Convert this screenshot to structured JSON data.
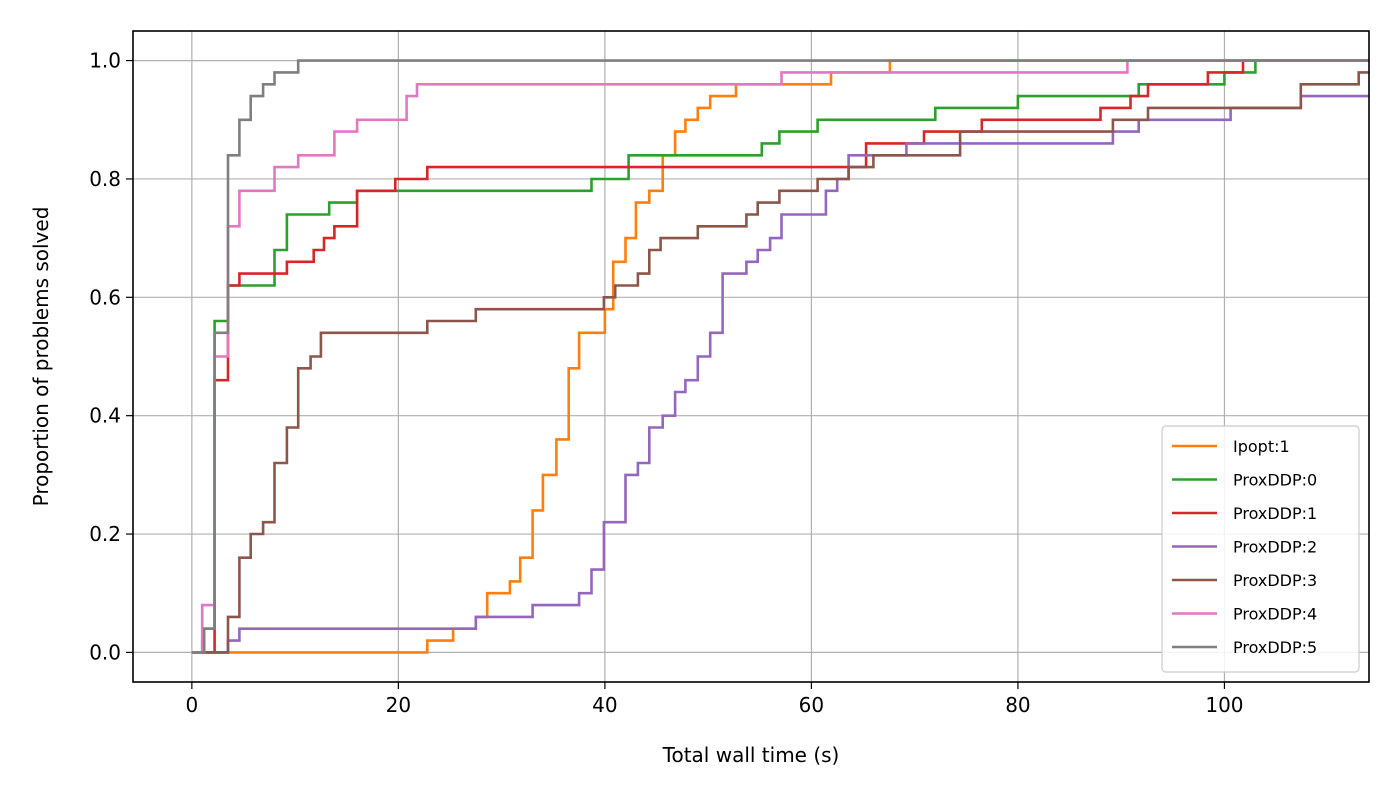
{
  "chart_data": {
    "type": "line",
    "step": "post",
    "xlabel": "Total wall time (s)",
    "ylabel": "Proportion of problems solved",
    "xlim": [
      -5.7,
      114
    ],
    "ylim": [
      -0.05,
      1.05
    ],
    "xticks": [
      0,
      20,
      40,
      60,
      80,
      100
    ],
    "yticks": [
      0.0,
      0.2,
      0.4,
      0.6,
      0.8,
      1.0
    ],
    "grid": true,
    "legend_position": "lower-right",
    "series": [
      {
        "name": "Ipopt:1",
        "color": "#ff7f0e",
        "points": [
          [
            0,
            0
          ],
          [
            22.8,
            0.02
          ],
          [
            25.3,
            0.04
          ],
          [
            27.5,
            0.06
          ],
          [
            28.6,
            0.1
          ],
          [
            30.8,
            0.12
          ],
          [
            31.8,
            0.16
          ],
          [
            33.0,
            0.24
          ],
          [
            34.0,
            0.3
          ],
          [
            35.3,
            0.36
          ],
          [
            36.5,
            0.48
          ],
          [
            37.5,
            0.54
          ],
          [
            40.0,
            0.58
          ],
          [
            40.8,
            0.66
          ],
          [
            42.0,
            0.7
          ],
          [
            43.0,
            0.76
          ],
          [
            44.3,
            0.78
          ],
          [
            45.6,
            0.84
          ],
          [
            46.8,
            0.88
          ],
          [
            47.8,
            0.9
          ],
          [
            49.0,
            0.92
          ],
          [
            50.2,
            0.94
          ],
          [
            52.7,
            0.96
          ],
          [
            61.9,
            0.98
          ],
          [
            67.6,
            1.0
          ],
          [
            114,
            1.0
          ]
        ]
      },
      {
        "name": "ProxDDP:0",
        "color": "#2ca02c",
        "points": [
          [
            0,
            0
          ],
          [
            1.0,
            0.02
          ],
          [
            1.2,
            0.04
          ],
          [
            2.2,
            0.56
          ],
          [
            3.5,
            0.62
          ],
          [
            8.0,
            0.68
          ],
          [
            9.2,
            0.74
          ],
          [
            13.3,
            0.76
          ],
          [
            16.0,
            0.78
          ],
          [
            38.7,
            0.8
          ],
          [
            42.3,
            0.84
          ],
          [
            55.2,
            0.86
          ],
          [
            56.9,
            0.88
          ],
          [
            60.6,
            0.9
          ],
          [
            72.0,
            0.92
          ],
          [
            80.0,
            0.94
          ],
          [
            91.7,
            0.96
          ],
          [
            100.0,
            0.98
          ],
          [
            103.0,
            1.0
          ],
          [
            114,
            1.0
          ]
        ]
      },
      {
        "name": "ProxDDP:1",
        "color": "#d62728",
        "points": [
          [
            0,
            0
          ],
          [
            2.2,
            0.46
          ],
          [
            3.5,
            0.62
          ],
          [
            4.6,
            0.64
          ],
          [
            9.2,
            0.66
          ],
          [
            11.8,
            0.68
          ],
          [
            12.8,
            0.7
          ],
          [
            13.8,
            0.72
          ],
          [
            16.0,
            0.78
          ],
          [
            19.7,
            0.8
          ],
          [
            22.8,
            0.82
          ],
          [
            45.6,
            0.82
          ],
          [
            65.3,
            0.86
          ],
          [
            70.9,
            0.88
          ],
          [
            76.5,
            0.9
          ],
          [
            88.0,
            0.92
          ],
          [
            90.9,
            0.94
          ],
          [
            92.6,
            0.96
          ],
          [
            98.4,
            0.98
          ],
          [
            101.8,
            1.0
          ],
          [
            114,
            1.0
          ]
        ]
      },
      {
        "name": "ProxDDP:2",
        "color": "#9467bd",
        "points": [
          [
            0,
            0
          ],
          [
            3.5,
            0.02
          ],
          [
            4.6,
            0.04
          ],
          [
            27.5,
            0.06
          ],
          [
            33.0,
            0.08
          ],
          [
            37.5,
            0.1
          ],
          [
            38.7,
            0.14
          ],
          [
            39.9,
            0.22
          ],
          [
            42.0,
            0.3
          ],
          [
            43.2,
            0.32
          ],
          [
            44.3,
            0.38
          ],
          [
            45.6,
            0.4
          ],
          [
            46.8,
            0.44
          ],
          [
            47.8,
            0.46
          ],
          [
            49.0,
            0.5
          ],
          [
            50.2,
            0.54
          ],
          [
            51.4,
            0.64
          ],
          [
            53.7,
            0.66
          ],
          [
            54.8,
            0.68
          ],
          [
            56.0,
            0.7
          ],
          [
            57.1,
            0.74
          ],
          [
            61.4,
            0.78
          ],
          [
            62.5,
            0.8
          ],
          [
            63.6,
            0.84
          ],
          [
            69.2,
            0.86
          ],
          [
            76.5,
            0.86
          ],
          [
            89.2,
            0.88
          ],
          [
            91.7,
            0.9
          ],
          [
            100.6,
            0.92
          ],
          [
            107.4,
            0.94
          ],
          [
            114,
            0.94
          ]
        ]
      },
      {
        "name": "ProxDDP:3",
        "color": "#8c564b",
        "points": [
          [
            0,
            0
          ],
          [
            3.5,
            0.06
          ],
          [
            4.6,
            0.16
          ],
          [
            5.7,
            0.2
          ],
          [
            6.9,
            0.22
          ],
          [
            8.0,
            0.32
          ],
          [
            9.2,
            0.38
          ],
          [
            10.3,
            0.48
          ],
          [
            11.5,
            0.5
          ],
          [
            12.5,
            0.54
          ],
          [
            22.8,
            0.56
          ],
          [
            27.5,
            0.58
          ],
          [
            39.9,
            0.6
          ],
          [
            41.0,
            0.62
          ],
          [
            43.2,
            0.64
          ],
          [
            44.3,
            0.68
          ],
          [
            45.4,
            0.7
          ],
          [
            49.0,
            0.72
          ],
          [
            53.7,
            0.74
          ],
          [
            54.8,
            0.76
          ],
          [
            56.9,
            0.78
          ],
          [
            60.6,
            0.8
          ],
          [
            63.6,
            0.82
          ],
          [
            66.0,
            0.84
          ],
          [
            74.4,
            0.88
          ],
          [
            89.2,
            0.9
          ],
          [
            92.6,
            0.92
          ],
          [
            107.4,
            0.96
          ],
          [
            113.0,
            0.98
          ],
          [
            114,
            0.98
          ]
        ]
      },
      {
        "name": "ProxDDP:4",
        "color": "#e377c2",
        "points": [
          [
            0,
            0
          ],
          [
            1.0,
            0.08
          ],
          [
            2.2,
            0.5
          ],
          [
            3.5,
            0.72
          ],
          [
            4.6,
            0.78
          ],
          [
            8.0,
            0.82
          ],
          [
            10.3,
            0.84
          ],
          [
            13.8,
            0.88
          ],
          [
            16.0,
            0.9
          ],
          [
            20.8,
            0.94
          ],
          [
            21.8,
            0.96
          ],
          [
            57.1,
            0.98
          ],
          [
            90.6,
            1.0
          ],
          [
            114,
            1.0
          ]
        ]
      },
      {
        "name": "ProxDDP:5",
        "color": "#7f7f7f",
        "points": [
          [
            0,
            0
          ],
          [
            1.2,
            0.04
          ],
          [
            2.2,
            0.54
          ],
          [
            3.5,
            0.84
          ],
          [
            4.6,
            0.9
          ],
          [
            5.7,
            0.94
          ],
          [
            6.9,
            0.96
          ],
          [
            8.0,
            0.98
          ],
          [
            10.3,
            1.0
          ],
          [
            114,
            1.0
          ]
        ]
      }
    ]
  }
}
